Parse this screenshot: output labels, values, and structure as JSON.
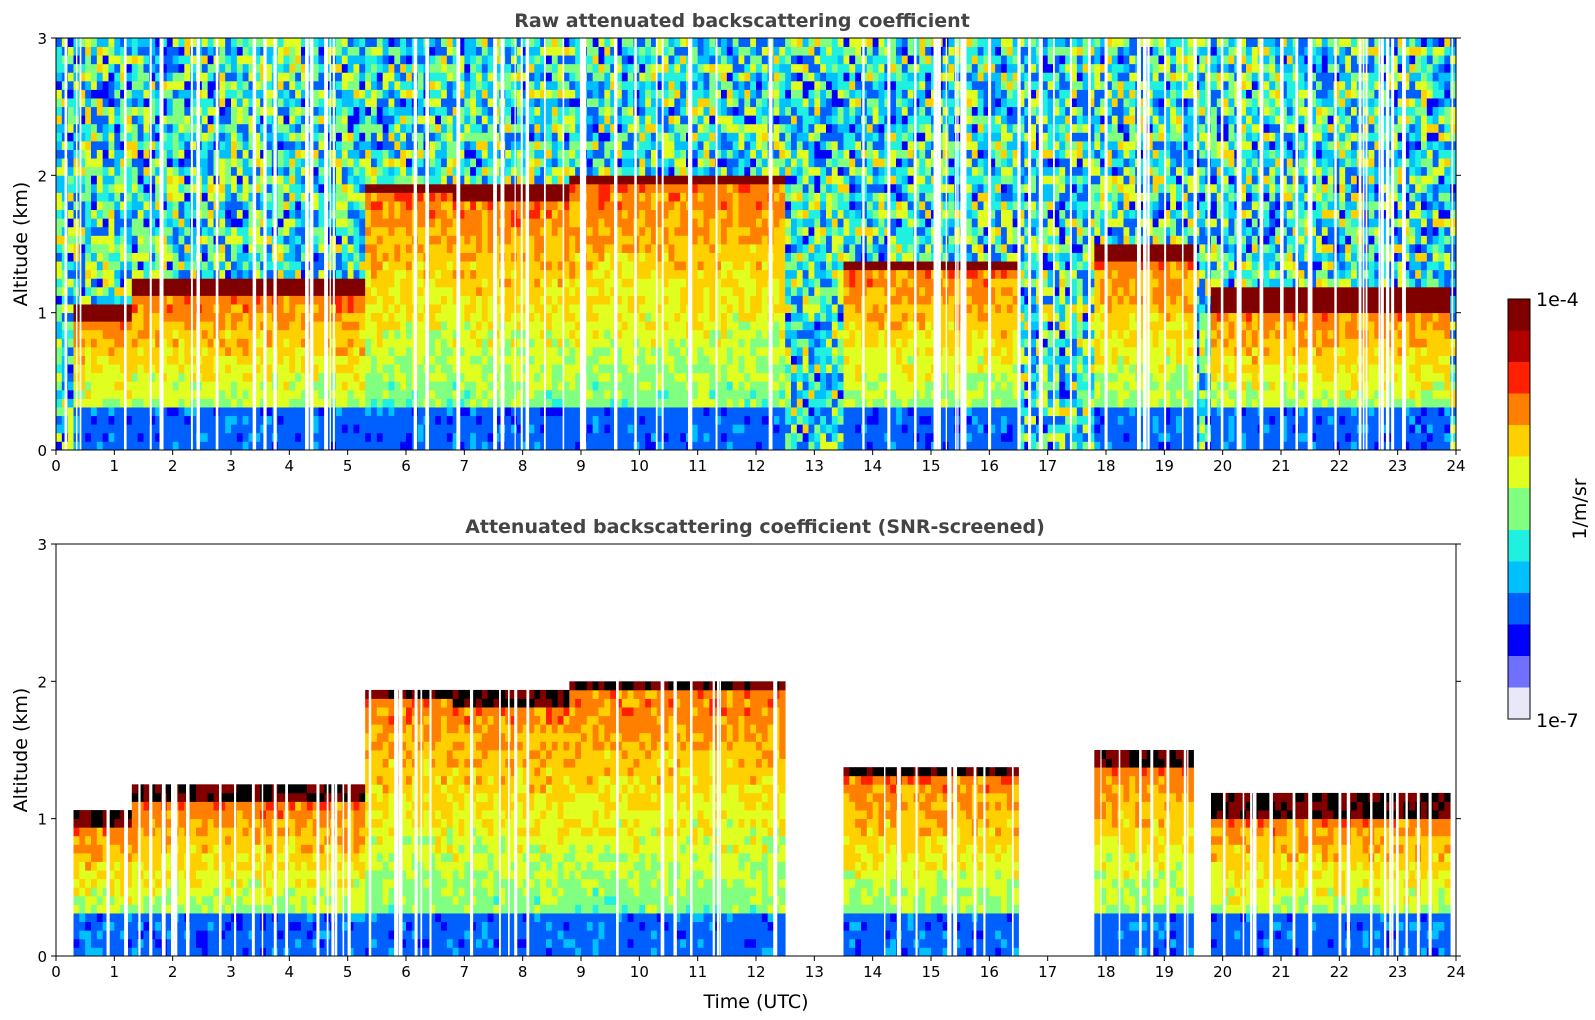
{
  "chart_data": [
    {
      "type": "heatmap",
      "title": "Raw attenuated backscattering coefficient",
      "xlabel": "",
      "ylabel": "Altitude (km)",
      "xlim": [
        0,
        24
      ],
      "ylim": [
        0,
        3
      ],
      "xticks": [
        "0",
        "1",
        "2",
        "3",
        "4",
        "5",
        "6",
        "7",
        "8",
        "9",
        "10",
        "11",
        "12",
        "13",
        "14",
        "15",
        "16",
        "17",
        "18",
        "19",
        "20",
        "21",
        "22",
        "23",
        "24"
      ],
      "yticks": [
        "0",
        "1",
        "2",
        "3"
      ],
      "screened": false,
      "layers": [
        {
          "from": 0.3,
          "to": 1.3,
          "alt": [
            0.95,
            1.08
          ]
        },
        {
          "from": 1.3,
          "to": 5.3,
          "alt": [
            1.1,
            1.25
          ]
        },
        {
          "from": 5.3,
          "to": 6.8,
          "alt": [
            1.85,
            1.95
          ]
        },
        {
          "from": 6.8,
          "to": 8.8,
          "alt": [
            1.8,
            1.95
          ]
        },
        {
          "from": 8.8,
          "to": 12.5,
          "alt": [
            1.92,
            2.02
          ]
        },
        {
          "from": 13.5,
          "to": 16.5,
          "alt": [
            1.3,
            1.38
          ]
        },
        {
          "from": 17.8,
          "to": 19.5,
          "alt": [
            1.4,
            1.5
          ]
        },
        {
          "from": 19.8,
          "to": 23.9,
          "alt": [
            1.0,
            1.2
          ]
        }
      ]
    },
    {
      "type": "heatmap",
      "title": "Attenuated backscattering coefficient (SNR-screened)",
      "xlabel": "Time (UTC)",
      "ylabel": "Altitude (km)",
      "xlim": [
        0,
        24
      ],
      "ylim": [
        0,
        3
      ],
      "xticks": [
        "0",
        "1",
        "2",
        "3",
        "4",
        "5",
        "6",
        "7",
        "8",
        "9",
        "10",
        "11",
        "12",
        "13",
        "14",
        "15",
        "16",
        "17",
        "18",
        "19",
        "20",
        "21",
        "22",
        "23",
        "24"
      ],
      "yticks": [
        "0",
        "1",
        "2",
        "3"
      ],
      "screened": true,
      "layers": [
        {
          "from": 0.3,
          "to": 1.3,
          "alt": [
            0.95,
            1.08
          ]
        },
        {
          "from": 1.3,
          "to": 5.3,
          "alt": [
            1.1,
            1.25
          ]
        },
        {
          "from": 5.3,
          "to": 6.8,
          "alt": [
            1.85,
            1.95
          ]
        },
        {
          "from": 6.8,
          "to": 8.8,
          "alt": [
            1.8,
            1.95
          ]
        },
        {
          "from": 8.8,
          "to": 12.5,
          "alt": [
            1.92,
            2.02
          ]
        },
        {
          "from": 13.5,
          "to": 16.5,
          "alt": [
            1.3,
            1.38
          ]
        },
        {
          "from": 17.8,
          "to": 19.5,
          "alt": [
            1.4,
            1.5
          ]
        },
        {
          "from": 19.8,
          "to": 23.9,
          "alt": [
            1.0,
            1.2
          ]
        }
      ]
    }
  ],
  "colorbar": {
    "label": "1/m/sr",
    "max_label": "1e-4",
    "min_label": "1e-7",
    "scale": "log",
    "range": [
      1e-07,
      0.0001
    ],
    "colormap": "jet",
    "colors": [
      "#e8e8f8",
      "#7070ff",
      "#0000ff",
      "#0060ff",
      "#00c0ff",
      "#20f0e0",
      "#80ff80",
      "#e0ff20",
      "#ffd000",
      "#ff8000",
      "#ff2000",
      "#b00000",
      "#800000"
    ]
  }
}
